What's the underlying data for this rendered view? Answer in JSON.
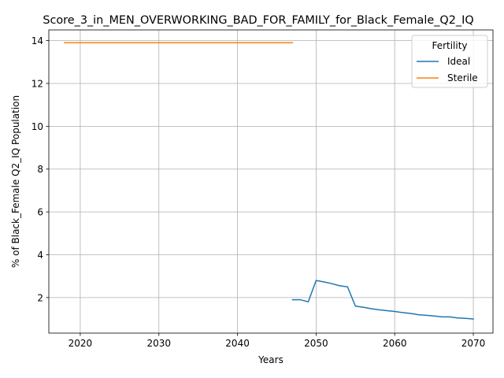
{
  "chart_data": {
    "type": "line",
    "title": "Score_3_in_MEN_OVERWORKING_BAD_FOR_FAMILY_for_Black_Female_Q2_IQ",
    "xlabel": "Years",
    "ylabel": "% of Black_Female Q2_IQ Population",
    "xlim": [
      2016,
      2072.5
    ],
    "ylim": [
      0.34,
      14.5
    ],
    "xticks": [
      2020,
      2030,
      2040,
      2050,
      2060,
      2070
    ],
    "yticks": [
      2,
      4,
      6,
      8,
      10,
      12,
      14
    ],
    "grid": true,
    "legend": {
      "title": "Fertility",
      "placement": "top-right"
    },
    "series": [
      {
        "name": "Ideal",
        "color": "#1f77b4",
        "x": [
          2047,
          2048,
          2049,
          2050,
          2051,
          2052,
          2053,
          2054,
          2055,
          2056,
          2057,
          2058,
          2059,
          2060,
          2061,
          2062,
          2063,
          2064,
          2065,
          2066,
          2067,
          2068,
          2069,
          2070
        ],
        "y": [
          1.9,
          1.9,
          1.8,
          2.8,
          2.73,
          2.65,
          2.55,
          2.5,
          1.6,
          1.55,
          1.48,
          1.43,
          1.39,
          1.35,
          1.3,
          1.26,
          1.2,
          1.17,
          1.14,
          1.1,
          1.1,
          1.05,
          1.03,
          1.0
        ]
      },
      {
        "name": "Sterile",
        "color": "#ff7f0e",
        "x": [
          2018,
          2047
        ],
        "y": [
          13.9,
          13.9
        ]
      }
    ]
  }
}
